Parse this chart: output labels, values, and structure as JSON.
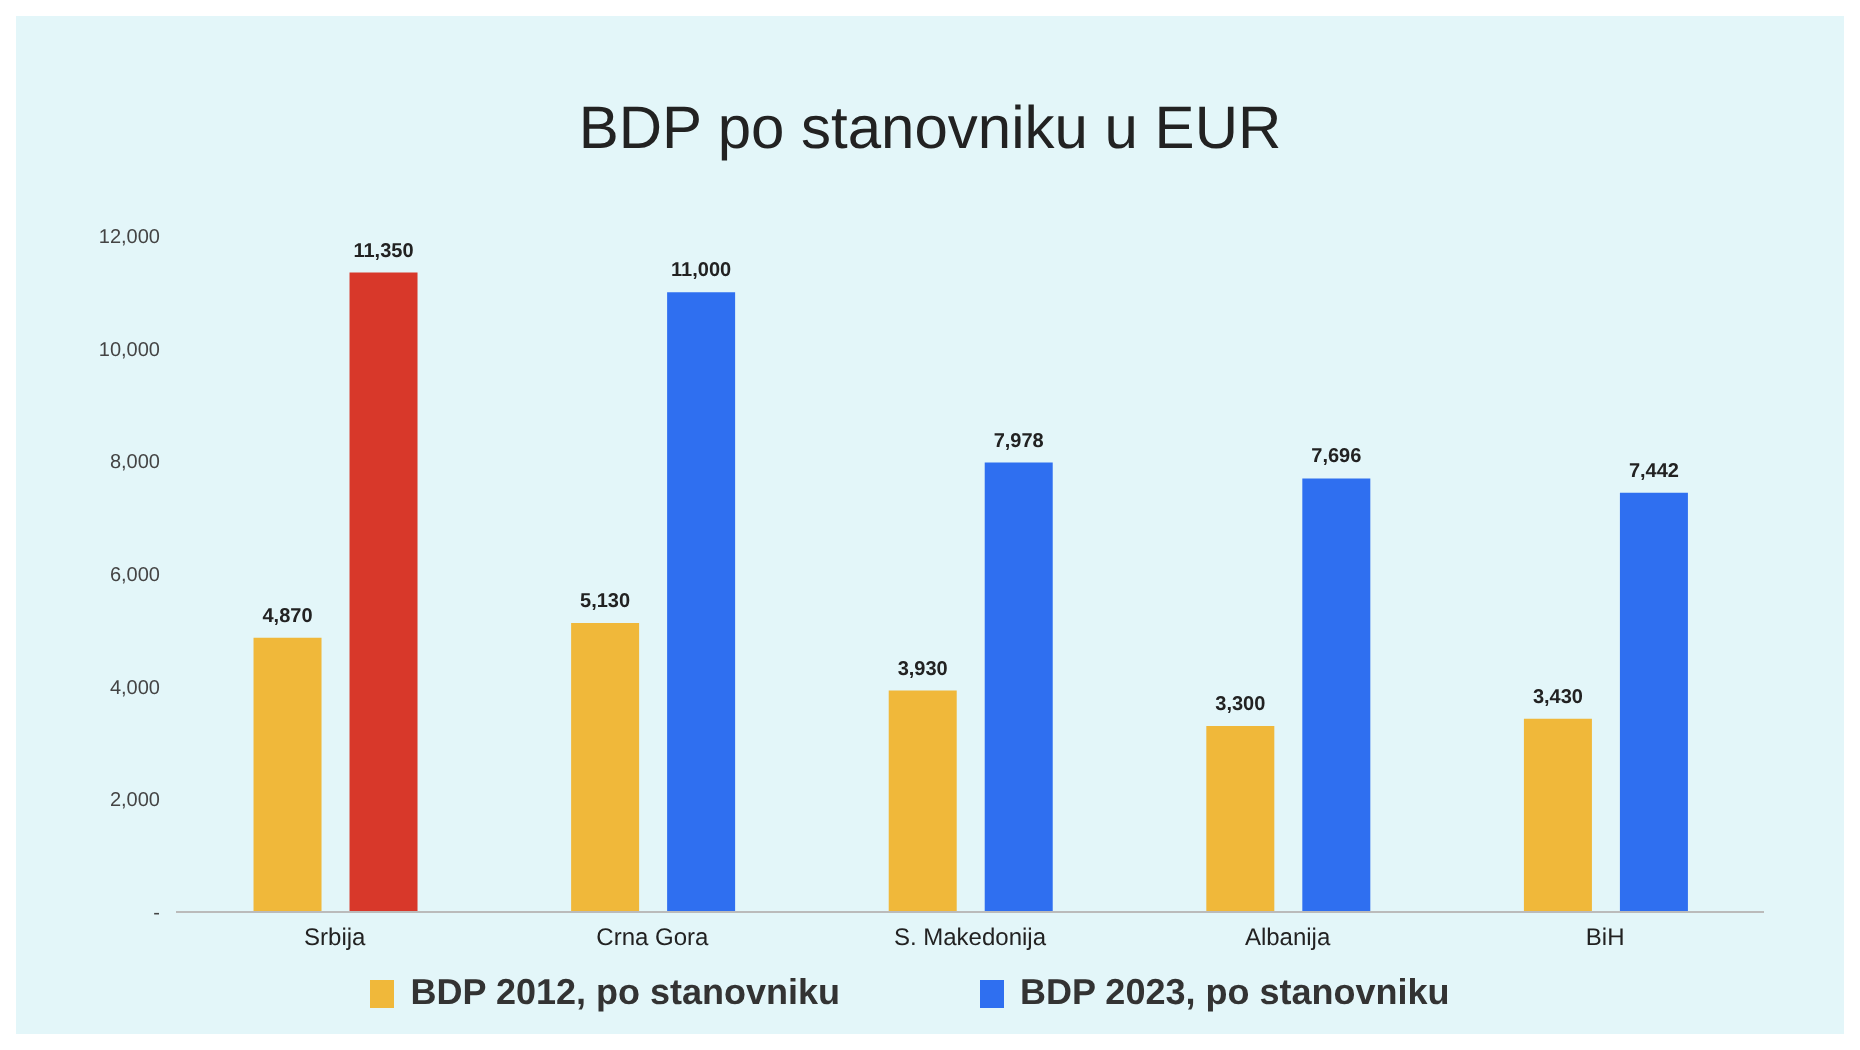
{
  "chart_data": {
    "type": "bar",
    "title": "BDP po stanovniku u EUR",
    "categories": [
      "Srbija",
      "Crna Gora",
      "S. Makedonija",
      "Albanija",
      "BiH"
    ],
    "series": [
      {
        "name": "BDP 2012, po stanovniku",
        "color": "#f0b83a",
        "values": [
          4870,
          5130,
          3930,
          3300,
          3430
        ],
        "value_labels": [
          "4,870",
          "5,130",
          "3,930",
          "3,300",
          "3,430"
        ]
      },
      {
        "name": "BDP 2023, po stanovniku",
        "color": "#2f6ff0",
        "colors": [
          "#d8382a",
          "#2f6ff0",
          "#2f6ff0",
          "#2f6ff0",
          "#2f6ff0"
        ],
        "values": [
          11350,
          11000,
          7978,
          7696,
          7442
        ],
        "value_labels": [
          "11,350",
          "11,000",
          "7,978",
          "7,696",
          "7,442"
        ]
      }
    ],
    "ylim": [
      0,
      12000
    ],
    "yticks": [
      {
        "value": 0,
        "label": "-"
      },
      {
        "value": 2000,
        "label": "2,000"
      },
      {
        "value": 4000,
        "label": "4,000"
      },
      {
        "value": 6000,
        "label": "6,000"
      },
      {
        "value": 8000,
        "label": "8,000"
      },
      {
        "value": 10000,
        "label": "10,000"
      },
      {
        "value": 12000,
        "label": "12,000"
      }
    ],
    "legend": "bottom",
    "grid": false
  }
}
